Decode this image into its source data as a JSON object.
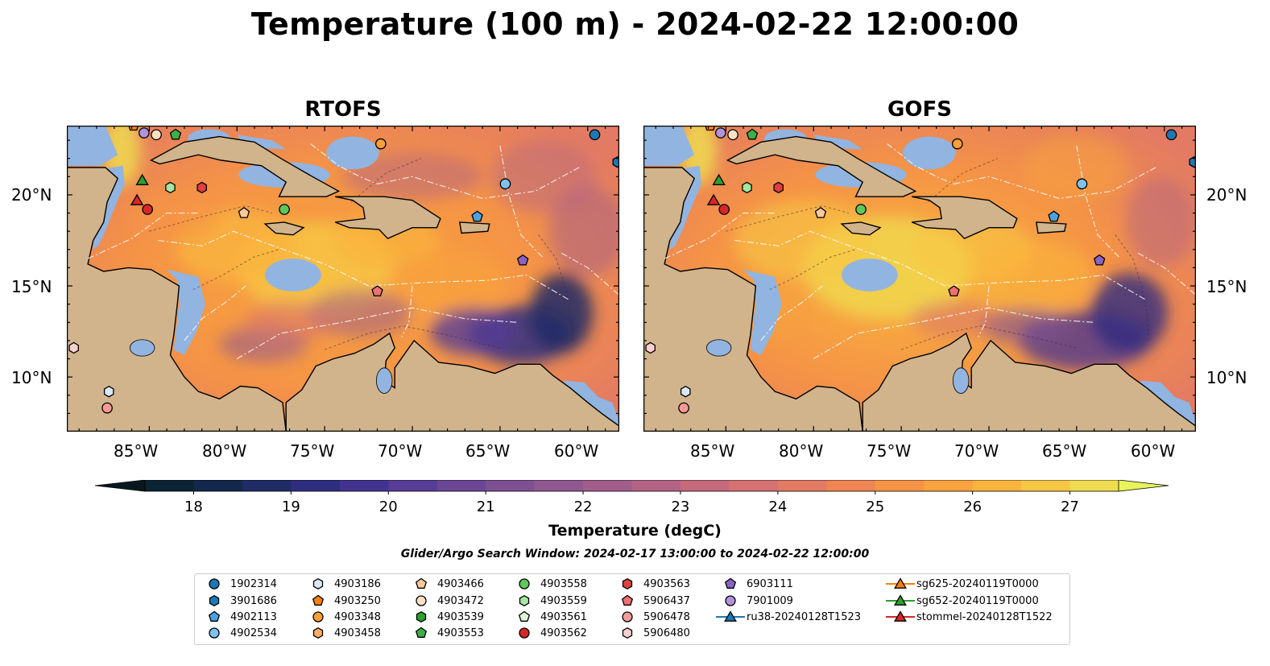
{
  "title": "Temperature (100 m) - 2024-02-22 12:00:00",
  "panels": [
    {
      "title": "RTOFS"
    },
    {
      "title": "GOFS"
    }
  ],
  "axes": {
    "lon_ticks": [
      "85°W",
      "80°W",
      "75°W",
      "70°W",
      "65°W",
      "60°W"
    ],
    "lat_ticks": [
      "20°N",
      "15°N",
      "10°N"
    ],
    "lon_range": [
      -89.7,
      -58.2
    ],
    "lat_range": [
      7.0,
      23.8
    ]
  },
  "colorbar": {
    "label": "Temperature (degC)",
    "ticks": [
      "18",
      "19",
      "20",
      "21",
      "22",
      "23",
      "24",
      "25",
      "26",
      "27"
    ],
    "range": [
      17.5,
      27.5
    ],
    "colors": [
      "#0a2433",
      "#13284d",
      "#1f2c66",
      "#2e2d7f",
      "#433391",
      "#573d96",
      "#6b4796",
      "#7d5093",
      "#8f5890",
      "#a15e8a",
      "#b36484",
      "#c46a7c",
      "#d57171",
      "#e37a63",
      "#ee8552",
      "#f59446",
      "#f8a33e",
      "#f9b43d",
      "#f6c745",
      "#efdb50"
    ],
    "over_color": "#e9f45a",
    "under_color": "#07191f"
  },
  "land_color": "#d1b48c",
  "shelf_color": "#92b4e0",
  "search_window": "Glider/Argo Search Window: 2024-02-17 13:00:00 to 2024-02-22 12:00:00",
  "legend": [
    {
      "label": "1902314",
      "marker": "circle",
      "color": "#1f77b4"
    },
    {
      "label": "3901686",
      "marker": "hexagon",
      "color": "#1f77b4"
    },
    {
      "label": "4902113",
      "marker": "pentagon",
      "color": "#4aa3df"
    },
    {
      "label": "4902534",
      "marker": "circle",
      "color": "#7ec3ee"
    },
    {
      "label": "4903186",
      "marker": "hexagon",
      "color": "#dbe9f6"
    },
    {
      "label": "4903250",
      "marker": "pentagon",
      "color": "#ff7f0e"
    },
    {
      "label": "4903348",
      "marker": "circle",
      "color": "#ff9f3a"
    },
    {
      "label": "4903458",
      "marker": "hexagon",
      "color": "#ffad66"
    },
    {
      "label": "4903466",
      "marker": "pentagon",
      "color": "#ffc99a"
    },
    {
      "label": "4903472",
      "marker": "circle",
      "color": "#ffe0c4"
    },
    {
      "label": "4903539",
      "marker": "hexagon",
      "color": "#2ca02c"
    },
    {
      "label": "4903553",
      "marker": "pentagon",
      "color": "#3cb044"
    },
    {
      "label": "4903558",
      "marker": "circle",
      "color": "#5ec85a"
    },
    {
      "label": "4903559",
      "marker": "hexagon",
      "color": "#a6e6a0"
    },
    {
      "label": "4903561",
      "marker": "pentagon",
      "color": "#dff5d8"
    },
    {
      "label": "4903562",
      "marker": "circle",
      "color": "#d62728"
    },
    {
      "label": "4903563",
      "marker": "hexagon",
      "color": "#e04040"
    },
    {
      "label": "5906437",
      "marker": "pentagon",
      "color": "#f07070"
    },
    {
      "label": "5906478",
      "marker": "circle",
      "color": "#f59a9a"
    },
    {
      "label": "5906480",
      "marker": "hexagon",
      "color": "#fbd0d0"
    },
    {
      "label": "6903111",
      "marker": "pentagon",
      "color": "#8a63c4"
    },
    {
      "label": "7901009",
      "marker": "circle",
      "color": "#b391dc"
    },
    {
      "label": "ru38-20240128T1523",
      "marker": "triangle-line",
      "color": "#1f77b4"
    },
    {
      "label": "sg625-20240119T0000",
      "marker": "triangle-line",
      "color": "#ff7f0e"
    },
    {
      "label": "sg652-20240119T0000",
      "marker": "triangle-line",
      "color": "#2ca02c"
    },
    {
      "label": "stommel-20240128T1522",
      "marker": "triangle-line",
      "color": "#d62728"
    }
  ],
  "floats": [
    {
      "id": "1902314",
      "lon": -59.6,
      "lat": 23.3
    },
    {
      "id": "3901686",
      "lon": -58.3,
      "lat": 21.8
    },
    {
      "id": "4902113",
      "lon": -66.3,
      "lat": 18.8
    },
    {
      "id": "4902534",
      "lon": -64.7,
      "lat": 20.6
    },
    {
      "id": "4903186",
      "lon": -87.3,
      "lat": 9.2
    },
    {
      "id": "4903250",
      "lon": -85.9,
      "lat": 23.8
    },
    {
      "id": "4903348",
      "lon": -71.8,
      "lat": 22.8
    },
    {
      "id": "4903466",
      "lon": -79.6,
      "lat": 19.0
    },
    {
      "id": "4903472",
      "lon": -84.6,
      "lat": 23.3
    },
    {
      "id": "4903553",
      "lon": -83.5,
      "lat": 23.3
    },
    {
      "id": "4903558",
      "lon": -77.3,
      "lat": 19.2
    },
    {
      "id": "4903559",
      "lon": -83.8,
      "lat": 20.4
    },
    {
      "id": "4903562",
      "lon": -85.1,
      "lat": 19.2
    },
    {
      "id": "4903563",
      "lon": -82.0,
      "lat": 20.4
    },
    {
      "id": "5906437",
      "lon": -72.0,
      "lat": 14.7
    },
    {
      "id": "5906478",
      "lon": -87.4,
      "lat": 8.3
    },
    {
      "id": "5906480",
      "lon": -89.3,
      "lat": 11.6
    },
    {
      "id": "6903111",
      "lon": -63.7,
      "lat": 16.4
    },
    {
      "id": "7901009",
      "lon": -85.3,
      "lat": 23.4
    }
  ],
  "gliders": [
    {
      "id": "sg652-20240119T0000",
      "lon": -85.4,
      "lat": 20.8
    },
    {
      "id": "stommel-20240128T1522",
      "lon": -85.7,
      "lat": 19.7
    }
  ]
}
